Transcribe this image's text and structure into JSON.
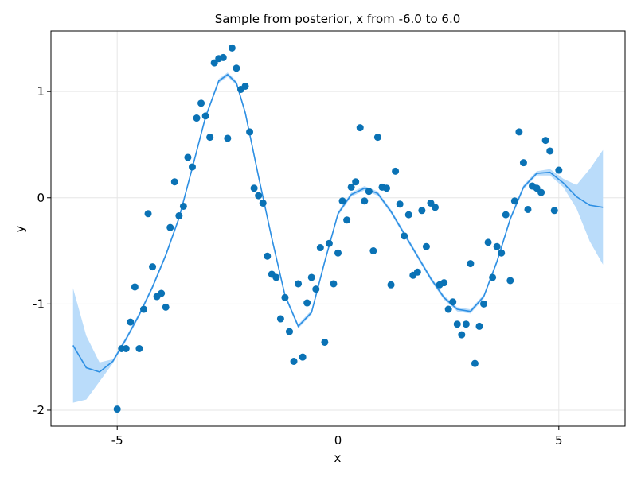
{
  "chart_data": {
    "type": "scatter",
    "title": "Sample from posterior, x from -6.0 to 6.0",
    "xlabel": "x",
    "ylabel": "y",
    "xlim": [
      -6.5,
      6.5
    ],
    "ylim": [
      -2.15,
      1.57
    ],
    "xticks": [
      -5,
      0,
      5
    ],
    "xtick_labels": [
      "-5",
      "0",
      "5"
    ],
    "yticks": [
      -2,
      -1,
      0,
      1
    ],
    "ytick_labels": [
      "-2",
      "-1",
      "0",
      "1"
    ],
    "grid": true,
    "colors": {
      "points": "#0a72b5",
      "mean_line": "#2d8fe3",
      "band": "#badcfa",
      "grid": "#e6e6e6",
      "frame": "#000000"
    },
    "series": [
      {
        "kind": "scatter",
        "points": [
          [
            -5.0,
            -1.99
          ],
          [
            -4.9,
            -1.42
          ],
          [
            -4.8,
            -1.42
          ],
          [
            -4.7,
            -1.17
          ],
          [
            -4.6,
            -0.84
          ],
          [
            -4.5,
            -1.42
          ],
          [
            -4.4,
            -1.05
          ],
          [
            -4.3,
            -0.15
          ],
          [
            -4.2,
            -0.65
          ],
          [
            -4.1,
            -0.93
          ],
          [
            -4.0,
            -0.9
          ],
          [
            -3.9,
            -1.03
          ],
          [
            -3.8,
            -0.28
          ],
          [
            -3.7,
            0.15
          ],
          [
            -3.6,
            -0.17
          ],
          [
            -3.5,
            -0.08
          ],
          [
            -3.4,
            0.38
          ],
          [
            -3.3,
            0.29
          ],
          [
            -3.2,
            0.75
          ],
          [
            -3.1,
            0.89
          ],
          [
            -3.0,
            0.77
          ],
          [
            -2.9,
            0.57
          ],
          [
            -2.8,
            1.27
          ],
          [
            -2.7,
            1.31
          ],
          [
            -2.6,
            1.32
          ],
          [
            -2.5,
            0.56
          ],
          [
            -2.4,
            1.41
          ],
          [
            -2.3,
            1.22
          ],
          [
            -2.2,
            1.02
          ],
          [
            -2.1,
            1.05
          ],
          [
            -2.0,
            0.62
          ],
          [
            -1.9,
            0.09
          ],
          [
            -1.8,
            0.02
          ],
          [
            -1.7,
            -0.05
          ],
          [
            -1.6,
            -0.55
          ],
          [
            -1.5,
            -0.72
          ],
          [
            -1.4,
            -0.75
          ],
          [
            -1.3,
            -1.14
          ],
          [
            -1.2,
            -0.94
          ],
          [
            -1.1,
            -1.26
          ],
          [
            -1.0,
            -1.54
          ],
          [
            -0.9,
            -0.81
          ],
          [
            -0.8,
            -1.5
          ],
          [
            -0.7,
            -0.99
          ],
          [
            -0.6,
            -0.75
          ],
          [
            -0.5,
            -0.86
          ],
          [
            -0.4,
            -0.47
          ],
          [
            -0.3,
            -1.36
          ],
          [
            -0.2,
            -0.43
          ],
          [
            -0.1,
            -0.81
          ],
          [
            0.0,
            -0.52
          ],
          [
            0.1,
            -0.03
          ],
          [
            0.2,
            -0.21
          ],
          [
            0.3,
            0.1
          ],
          [
            0.4,
            0.15
          ],
          [
            0.5,
            0.66
          ],
          [
            0.6,
            -0.03
          ],
          [
            0.7,
            0.06
          ],
          [
            0.8,
            -0.5
          ],
          [
            0.9,
            0.57
          ],
          [
            1.0,
            0.1
          ],
          [
            1.1,
            0.09
          ],
          [
            1.2,
            -0.82
          ],
          [
            1.3,
            0.25
          ],
          [
            1.4,
            -0.06
          ],
          [
            1.5,
            -0.36
          ],
          [
            1.6,
            -0.16
          ],
          [
            1.7,
            -0.73
          ],
          [
            1.8,
            -0.7
          ],
          [
            1.9,
            -0.12
          ],
          [
            2.0,
            -0.46
          ],
          [
            2.1,
            -0.05
          ],
          [
            2.2,
            -0.09
          ],
          [
            2.3,
            -0.82
          ],
          [
            2.4,
            -0.8
          ],
          [
            2.5,
            -1.05
          ],
          [
            2.6,
            -0.98
          ],
          [
            2.7,
            -1.19
          ],
          [
            2.8,
            -1.29
          ],
          [
            2.9,
            -1.19
          ],
          [
            3.0,
            -0.62
          ],
          [
            3.1,
            -1.56
          ],
          [
            3.2,
            -1.21
          ],
          [
            3.3,
            -1.0
          ],
          [
            3.4,
            -0.42
          ],
          [
            3.5,
            -0.75
          ],
          [
            3.6,
            -0.46
          ],
          [
            3.7,
            -0.52
          ],
          [
            3.8,
            -0.16
          ],
          [
            3.9,
            -0.78
          ],
          [
            4.0,
            -0.03
          ],
          [
            4.1,
            0.62
          ],
          [
            4.2,
            0.33
          ],
          [
            4.3,
            -0.11
          ],
          [
            4.4,
            0.11
          ],
          [
            4.5,
            0.09
          ],
          [
            4.6,
            0.05
          ],
          [
            4.7,
            0.54
          ],
          [
            4.8,
            0.44
          ],
          [
            4.9,
            -0.12
          ],
          [
            5.0,
            0.26
          ]
        ]
      },
      {
        "kind": "line",
        "x": [
          -6.0,
          -5.7,
          -5.4,
          -5.1,
          -4.8,
          -4.5,
          -4.2,
          -3.9,
          -3.6,
          -3.3,
          -3.0,
          -2.7,
          -2.5,
          -2.3,
          -2.1,
          -1.8,
          -1.5,
          -1.2,
          -0.9,
          -0.6,
          -0.3,
          0.0,
          0.3,
          0.6,
          0.9,
          1.2,
          1.5,
          1.8,
          2.1,
          2.4,
          2.7,
          3.0,
          3.3,
          3.6,
          3.9,
          4.2,
          4.5,
          4.8,
          5.1,
          5.4,
          5.7,
          6.0
        ],
        "y": [
          -1.39,
          -1.6,
          -1.64,
          -1.54,
          -1.33,
          -1.1,
          -0.84,
          -0.54,
          -0.19,
          0.28,
          0.76,
          1.1,
          1.16,
          1.08,
          0.8,
          0.2,
          -0.38,
          -0.92,
          -1.21,
          -1.08,
          -0.6,
          -0.15,
          0.03,
          0.09,
          0.04,
          -0.13,
          -0.34,
          -0.55,
          -0.76,
          -0.94,
          -1.05,
          -1.07,
          -0.93,
          -0.6,
          -0.2,
          0.1,
          0.23,
          0.24,
          0.14,
          0.01,
          -0.07,
          -0.09
        ]
      },
      {
        "kind": "band",
        "x": [
          -6.0,
          -5.7,
          -5.4,
          -5.1,
          -4.8,
          -4.5,
          -4.2,
          -3.9,
          -3.6,
          -3.3,
          -3.0,
          -2.7,
          -2.5,
          -2.3,
          -2.1,
          -1.8,
          -1.5,
          -1.2,
          -0.9,
          -0.6,
          -0.3,
          0.0,
          0.3,
          0.6,
          0.9,
          1.2,
          1.5,
          1.8,
          2.1,
          2.4,
          2.7,
          3.0,
          3.3,
          3.6,
          3.9,
          4.2,
          4.5,
          4.8,
          5.1,
          5.4,
          5.7,
          6.0
        ],
        "upper": [
          -0.85,
          -1.3,
          -1.55,
          -1.52,
          -1.31,
          -1.08,
          -0.82,
          -0.52,
          -0.17,
          0.3,
          0.78,
          1.12,
          1.18,
          1.1,
          0.82,
          0.22,
          -0.36,
          -0.9,
          -1.19,
          -1.06,
          -0.58,
          -0.13,
          0.05,
          0.11,
          0.06,
          -0.11,
          -0.32,
          -0.53,
          -0.74,
          -0.92,
          -1.03,
          -1.05,
          -0.91,
          -0.58,
          -0.18,
          0.12,
          0.25,
          0.27,
          0.18,
          0.12,
          0.27,
          0.45
        ],
        "lower": [
          -1.93,
          -1.9,
          -1.73,
          -1.56,
          -1.35,
          -1.12,
          -0.86,
          -0.56,
          -0.21,
          0.26,
          0.74,
          1.08,
          1.14,
          1.06,
          0.78,
          0.18,
          -0.4,
          -0.94,
          -1.23,
          -1.1,
          -0.62,
          -0.17,
          0.01,
          0.07,
          0.02,
          -0.15,
          -0.36,
          -0.57,
          -0.78,
          -0.96,
          -1.07,
          -1.09,
          -0.95,
          -0.62,
          -0.22,
          0.08,
          0.21,
          0.21,
          0.1,
          -0.1,
          -0.41,
          -0.63
        ]
      }
    ]
  }
}
